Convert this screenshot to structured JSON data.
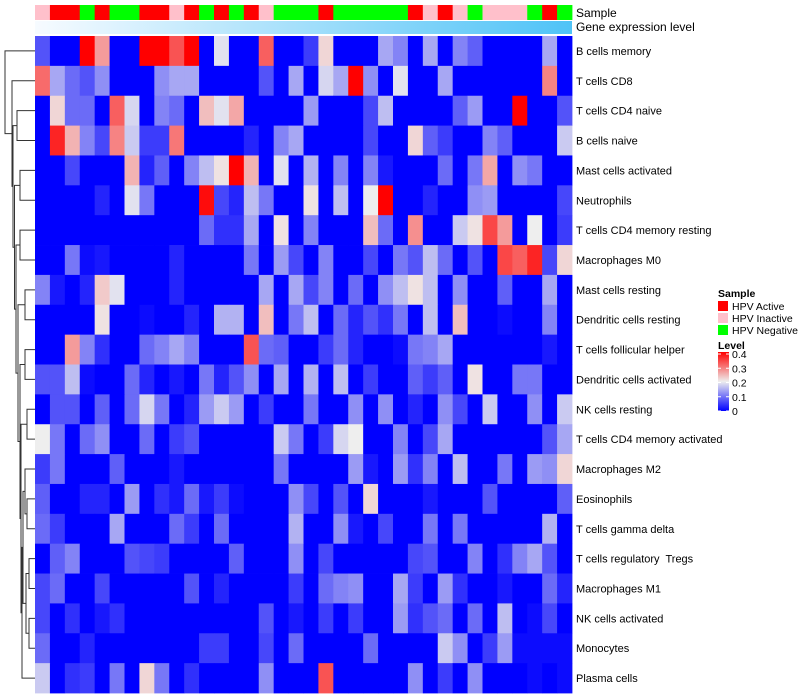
{
  "chart_data": {
    "type": "heatmap",
    "title": "",
    "annotation_labels": {
      "sample": "Sample",
      "gene_expression": "Gene expression level"
    },
    "rows": [
      "B cells memory",
      "T cells CD8",
      "T cells CD4 naive",
      "B cells naive",
      "Mast cells activated",
      "Neutrophils",
      "T cells CD4 memory resting",
      "Macrophages M0",
      "Mast cells resting",
      "Dendritic cells resting",
      "T cells follicular helper",
      "Dendritic cells activated",
      "NK cells resting",
      "T cells CD4 memory activated",
      "Macrophages M2",
      "Eosinophils",
      "T cells gamma delta",
      "T cells regulatory  Tregs",
      "Macrophages M1",
      "NK cells activated",
      "Monocytes",
      "Plasma cells"
    ],
    "sample_groups": [
      "Inactive",
      "Active",
      "Active",
      "Negative",
      "Active",
      "Negative",
      "Negative",
      "Active",
      "Active",
      "Inactive",
      "Active",
      "Negative",
      "Active",
      "Negative",
      "Active",
      "Inactive",
      "Negative",
      "Negative",
      "Negative",
      "Active",
      "Negative",
      "Negative",
      "Negative",
      "Negative",
      "Negative",
      "Active",
      "Inactive",
      "Active",
      "Inactive",
      "Negative",
      "Inactive",
      "Inactive",
      "Inactive",
      "Negative",
      "Active",
      "Negative"
    ],
    "gene_expression_trend": "increasing left to right",
    "values": [
      [
        0.07,
        0,
        0,
        0.4,
        0.27,
        0,
        0,
        0.4,
        0.4,
        0.33,
        0.4,
        0,
        0.19,
        0,
        0,
        0.32,
        0,
        0,
        0.05,
        0.22,
        0,
        0,
        0,
        0.14,
        0.11,
        0,
        0.14,
        0,
        0.11,
        0.08,
        0,
        0,
        0,
        0,
        0.14,
        0
      ],
      [
        0.31,
        0.14,
        0.09,
        0.07,
        0.12,
        0,
        0,
        0,
        0.12,
        0.14,
        0.14,
        0,
        0,
        0,
        0,
        0.07,
        0,
        0.14,
        0,
        0.18,
        0.14,
        0.4,
        0.12,
        0,
        0.19,
        0,
        0,
        0.14,
        0,
        0,
        0,
        0,
        0,
        0,
        0.29,
        0
      ],
      [
        0,
        0.22,
        0.09,
        0.09,
        0,
        0.32,
        0.18,
        0,
        0.11,
        0.09,
        0,
        0.24,
        0.19,
        0.26,
        0,
        0,
        0,
        0,
        0.13,
        0,
        0,
        0,
        0.06,
        0.16,
        0,
        0,
        0,
        0,
        0.08,
        0.13,
        0,
        0,
        0.4,
        0,
        0,
        0.07
      ],
      [
        0,
        0.37,
        0.25,
        0.11,
        0.06,
        0.29,
        0.17,
        0.05,
        0.05,
        0.3,
        0,
        0,
        0,
        0,
        0.03,
        0,
        0.11,
        0.14,
        0,
        0,
        0,
        0,
        0.06,
        0,
        0,
        0.22,
        0.08,
        0.05,
        0,
        0,
        0.11,
        0.08,
        0,
        0,
        0,
        0.17
      ],
      [
        0,
        0,
        0.06,
        0,
        0,
        0,
        0.25,
        0.03,
        0.08,
        0,
        0.11,
        0.16,
        0.21,
        0.4,
        0.25,
        0,
        0.19,
        0,
        0.15,
        0,
        0.11,
        0,
        0.11,
        0.02,
        0,
        0,
        0,
        0.09,
        0,
        0.1,
        0.26,
        0,
        0.12,
        0.1,
        0,
        0
      ],
      [
        0,
        0,
        0,
        0,
        0.03,
        0,
        0.19,
        0.1,
        0,
        0,
        0,
        0.39,
        0.06,
        0.03,
        0.16,
        0.1,
        0,
        0,
        0.21,
        0,
        0.16,
        0,
        0.2,
        0.4,
        0,
        0,
        0.03,
        0,
        0,
        0.12,
        0.13,
        0,
        0,
        0,
        0,
        0.06
      ],
      [
        0,
        0,
        0,
        0,
        0,
        0,
        0,
        0,
        0,
        0,
        0,
        0.09,
        0.04,
        0.04,
        0.14,
        0,
        0.21,
        0,
        0.11,
        0,
        0,
        0,
        0.24,
        0.09,
        0,
        0.28,
        0,
        0,
        0.17,
        0.21,
        0.34,
        0.27,
        0,
        0.2,
        0,
        0.05
      ],
      [
        0,
        0,
        0.1,
        0.01,
        0.02,
        0,
        0,
        0,
        0,
        0.03,
        0,
        0,
        0,
        0,
        0.1,
        0,
        0.13,
        0.06,
        0,
        0.11,
        0,
        0,
        0.06,
        0,
        0.1,
        0.07,
        0.16,
        0.09,
        0,
        0.07,
        0,
        0.34,
        0.32,
        0.37,
        0.06,
        0.22
      ],
      [
        0.11,
        0.02,
        0,
        0.03,
        0.23,
        0.19,
        0,
        0,
        0,
        0.03,
        0,
        0,
        0,
        0,
        0,
        0.14,
        0,
        0.14,
        0.06,
        0.11,
        0,
        0.09,
        0,
        0.12,
        0.16,
        0.21,
        0.16,
        0,
        0.12,
        0,
        0,
        0.08,
        0,
        0,
        0.14,
        0
      ],
      [
        0,
        0,
        0,
        0,
        0.21,
        0,
        0,
        0.01,
        0,
        0,
        0.03,
        0,
        0.15,
        0.15,
        0,
        0.24,
        0,
        0.1,
        0.16,
        0,
        0.09,
        0.03,
        0.07,
        0.04,
        0.1,
        0,
        0.16,
        0,
        0.24,
        0,
        0,
        0.01,
        0,
        0,
        0.11,
        0
      ],
      [
        0,
        0,
        0.27,
        0.11,
        0.04,
        0,
        0,
        0.09,
        0.11,
        0.14,
        0.11,
        0,
        0,
        0,
        0.33,
        0.09,
        0.08,
        0,
        0,
        0.05,
        0.09,
        0.03,
        0,
        0,
        0.01,
        0.1,
        0.11,
        0.14,
        0,
        0,
        0,
        0,
        0,
        0,
        0.02,
        0
      ],
      [
        0.07,
        0.07,
        0.16,
        0.01,
        0,
        0,
        0.09,
        0.03,
        0,
        0.02,
        0,
        0.1,
        0.03,
        0.07,
        0.12,
        0,
        0.14,
        0,
        0.15,
        0,
        0.16,
        0,
        0.05,
        0,
        0,
        0.08,
        0.05,
        0.08,
        0,
        0.21,
        0,
        0,
        0.1,
        0.1,
        0,
        0
      ],
      [
        0,
        0.07,
        0.07,
        0,
        0.08,
        0,
        0.09,
        0.18,
        0.1,
        0,
        0.03,
        0.13,
        0.17,
        0.13,
        0,
        0.05,
        0,
        0,
        0.1,
        0,
        0,
        0.12,
        0,
        0.12,
        0,
        0.03,
        0,
        0.12,
        0.06,
        0,
        0.17,
        0,
        0,
        0.12,
        0,
        0.17
      ],
      [
        0.2,
        0.1,
        0,
        0.09,
        0.12,
        0,
        0,
        0.09,
        0,
        0.05,
        0.07,
        0,
        0,
        0,
        0,
        0,
        0.17,
        0.1,
        0,
        0.05,
        0.18,
        0.2,
        0,
        0,
        0.11,
        0,
        0.06,
        0.14,
        0,
        0,
        0,
        0,
        0,
        0,
        0.07,
        0.14
      ],
      [
        0.05,
        0.1,
        0,
        0,
        0,
        0.08,
        0,
        0,
        0,
        0.02,
        0,
        0,
        0,
        0,
        0,
        0,
        0.1,
        0,
        0,
        0,
        0,
        0.13,
        0.02,
        0,
        0.13,
        0.04,
        0.11,
        0,
        0.16,
        0,
        0,
        0.1,
        0,
        0.13,
        0.12,
        0.22
      ],
      [
        0.08,
        0,
        0,
        0.03,
        0.03,
        0,
        0.13,
        0,
        0.04,
        0.02,
        0.09,
        0.02,
        0.05,
        0.01,
        0,
        0,
        0,
        0.12,
        0.06,
        0,
        0.07,
        0,
        0.22,
        0,
        0,
        0,
        0.02,
        0,
        0,
        0,
        0.07,
        0,
        0,
        0,
        0,
        0.08
      ],
      [
        0.09,
        0.05,
        0,
        0,
        0,
        0.14,
        0,
        0,
        0,
        0.09,
        0.05,
        0,
        0.09,
        0,
        0,
        0,
        0,
        0.15,
        0,
        0,
        0.12,
        0.02,
        0,
        0.06,
        0,
        0,
        0.1,
        0,
        0.1,
        0,
        0,
        0,
        0,
        0,
        0.15,
        0
      ],
      [
        0,
        0.08,
        0.11,
        0,
        0,
        0,
        0.07,
        0.06,
        0.05,
        0,
        0,
        0,
        0,
        0.08,
        0,
        0,
        0,
        0.12,
        0,
        0.06,
        0,
        0,
        0,
        0,
        0,
        0.06,
        0.07,
        0,
        0,
        0.11,
        0,
        0.04,
        0.11,
        0.14,
        0.07,
        0
      ],
      [
        0.06,
        0.09,
        0,
        0,
        0.06,
        0,
        0,
        0,
        0,
        0,
        0.07,
        0,
        0.03,
        0,
        0,
        0,
        0,
        0.05,
        0,
        0.09,
        0.11,
        0.12,
        0,
        0,
        0.14,
        0.05,
        0,
        0.13,
        0.04,
        0,
        0,
        0.02,
        0,
        0,
        0.09,
        0.03
      ],
      [
        0.06,
        0,
        0.04,
        0,
        0.02,
        0.04,
        0,
        0,
        0,
        0,
        0,
        0,
        0,
        0,
        0,
        0.07,
        0,
        0.02,
        0,
        0.05,
        0,
        0.05,
        0,
        0,
        0.13,
        0.04,
        0.07,
        0.09,
        0,
        0.09,
        0,
        0.16,
        0,
        0.01,
        0.06,
        0
      ],
      [
        0.09,
        0,
        0,
        0.03,
        0,
        0,
        0,
        0,
        0,
        0,
        0,
        0.05,
        0.05,
        0,
        0,
        0.06,
        0,
        0.09,
        0,
        0,
        0,
        0,
        0.09,
        0,
        0,
        0,
        0,
        0.17,
        0.12,
        0,
        0.05,
        0.13,
        0.01,
        0.01,
        0.01,
        0.01
      ],
      [
        0.17,
        0,
        0.04,
        0.05,
        0,
        0.1,
        0,
        0.22,
        0.1,
        0,
        0.04,
        0,
        0,
        0,
        0,
        0.12,
        0,
        0,
        0,
        0.33,
        0,
        0,
        0,
        0,
        0,
        0.12,
        0,
        0.05,
        0,
        0.12,
        0,
        0,
        0,
        0.01,
        0,
        0.01
      ]
    ],
    "color_scale": {
      "min": 0,
      "mid": 0.2,
      "max": 0.4,
      "low_color": "#0000ff",
      "mid_color": "#eeeeee",
      "high_color": "#ff0000"
    },
    "legend": {
      "sample_title": "Sample",
      "sample_entries": [
        {
          "key": "Active",
          "label": "HPV Active",
          "color": "#ff0000"
        },
        {
          "key": "Inactive",
          "label": "HPV Inactive",
          "color": "#ffc0cb"
        },
        {
          "key": "Negative",
          "label": "HPV Negative",
          "color": "#00ff00"
        }
      ],
      "level_title": "Level",
      "level_ticks": [
        "0.4",
        "0.3",
        "0.2",
        "0.1",
        "0"
      ],
      "level_tick_values": [
        0.4,
        0.3,
        0.2,
        0.1,
        0
      ],
      "placement": "right"
    },
    "gene_expression_colors": {
      "low": "#f7fbff",
      "high": "#4fc3f7"
    }
  }
}
